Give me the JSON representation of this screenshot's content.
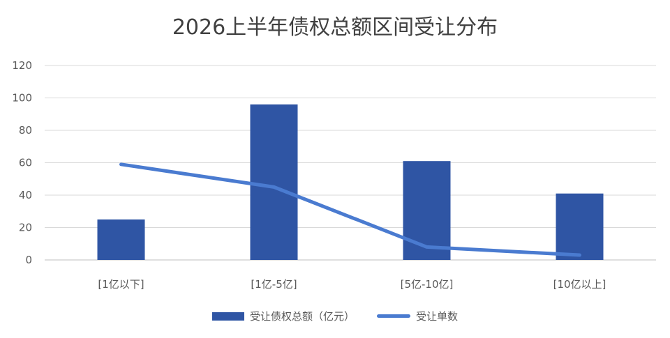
{
  "chart_data": {
    "type": "bar",
    "title": "2026上半年债权总额区间受让分布",
    "xlabel": "",
    "ylabel": "",
    "categories": [
      "[1亿以下]",
      "[1亿-5亿]",
      "[5亿-10亿]",
      "[10亿以上]"
    ],
    "ylim": [
      0,
      120
    ],
    "yticks": [
      0,
      20,
      40,
      60,
      80,
      100,
      120
    ],
    "grid": true,
    "legend_position": "bottom",
    "series": [
      {
        "name": "受让债权总额（亿元）",
        "type": "bar",
        "values": [
          25,
          96,
          61,
          41
        ],
        "color": "#2F55A4"
      },
      {
        "name": "受让单数",
        "type": "line",
        "values": [
          59,
          45,
          8,
          3
        ],
        "color": "#4A7BD0"
      }
    ]
  }
}
